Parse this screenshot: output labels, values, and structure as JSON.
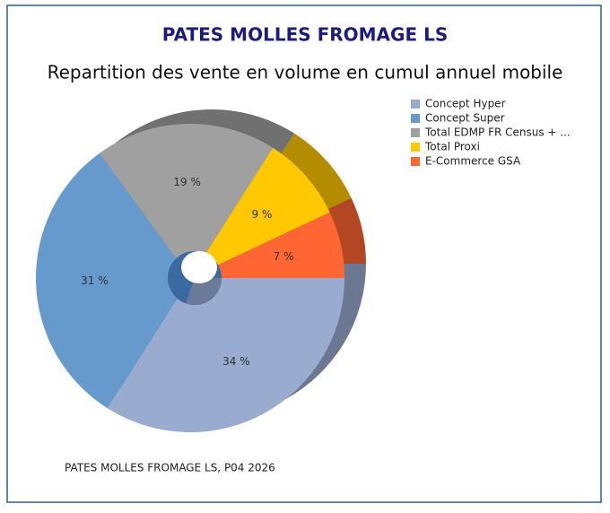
{
  "chart_data": {
    "type": "pie",
    "title": "PATES MOLLES FROMAGE LS",
    "subtitle": "Repartition des vente en volume en cumul annuel mobile",
    "footnote": "PATES MOLLES FROMAGE LS, P04 2026",
    "categories": [
      "Concept Hyper",
      "Concept Super",
      "Total EDMP FR Census + ...",
      "Total Proxi",
      "E-Commerce GSA"
    ],
    "values": [
      34,
      31,
      19,
      9,
      7
    ],
    "value_labels": [
      "34 %",
      "31 %",
      "19 %",
      "9 %",
      "7 %"
    ],
    "colors": [
      "#9aabd0",
      "#6699cc",
      "#a0a0a0",
      "#ffc800",
      "#ff6633"
    ],
    "legend": "right"
  }
}
